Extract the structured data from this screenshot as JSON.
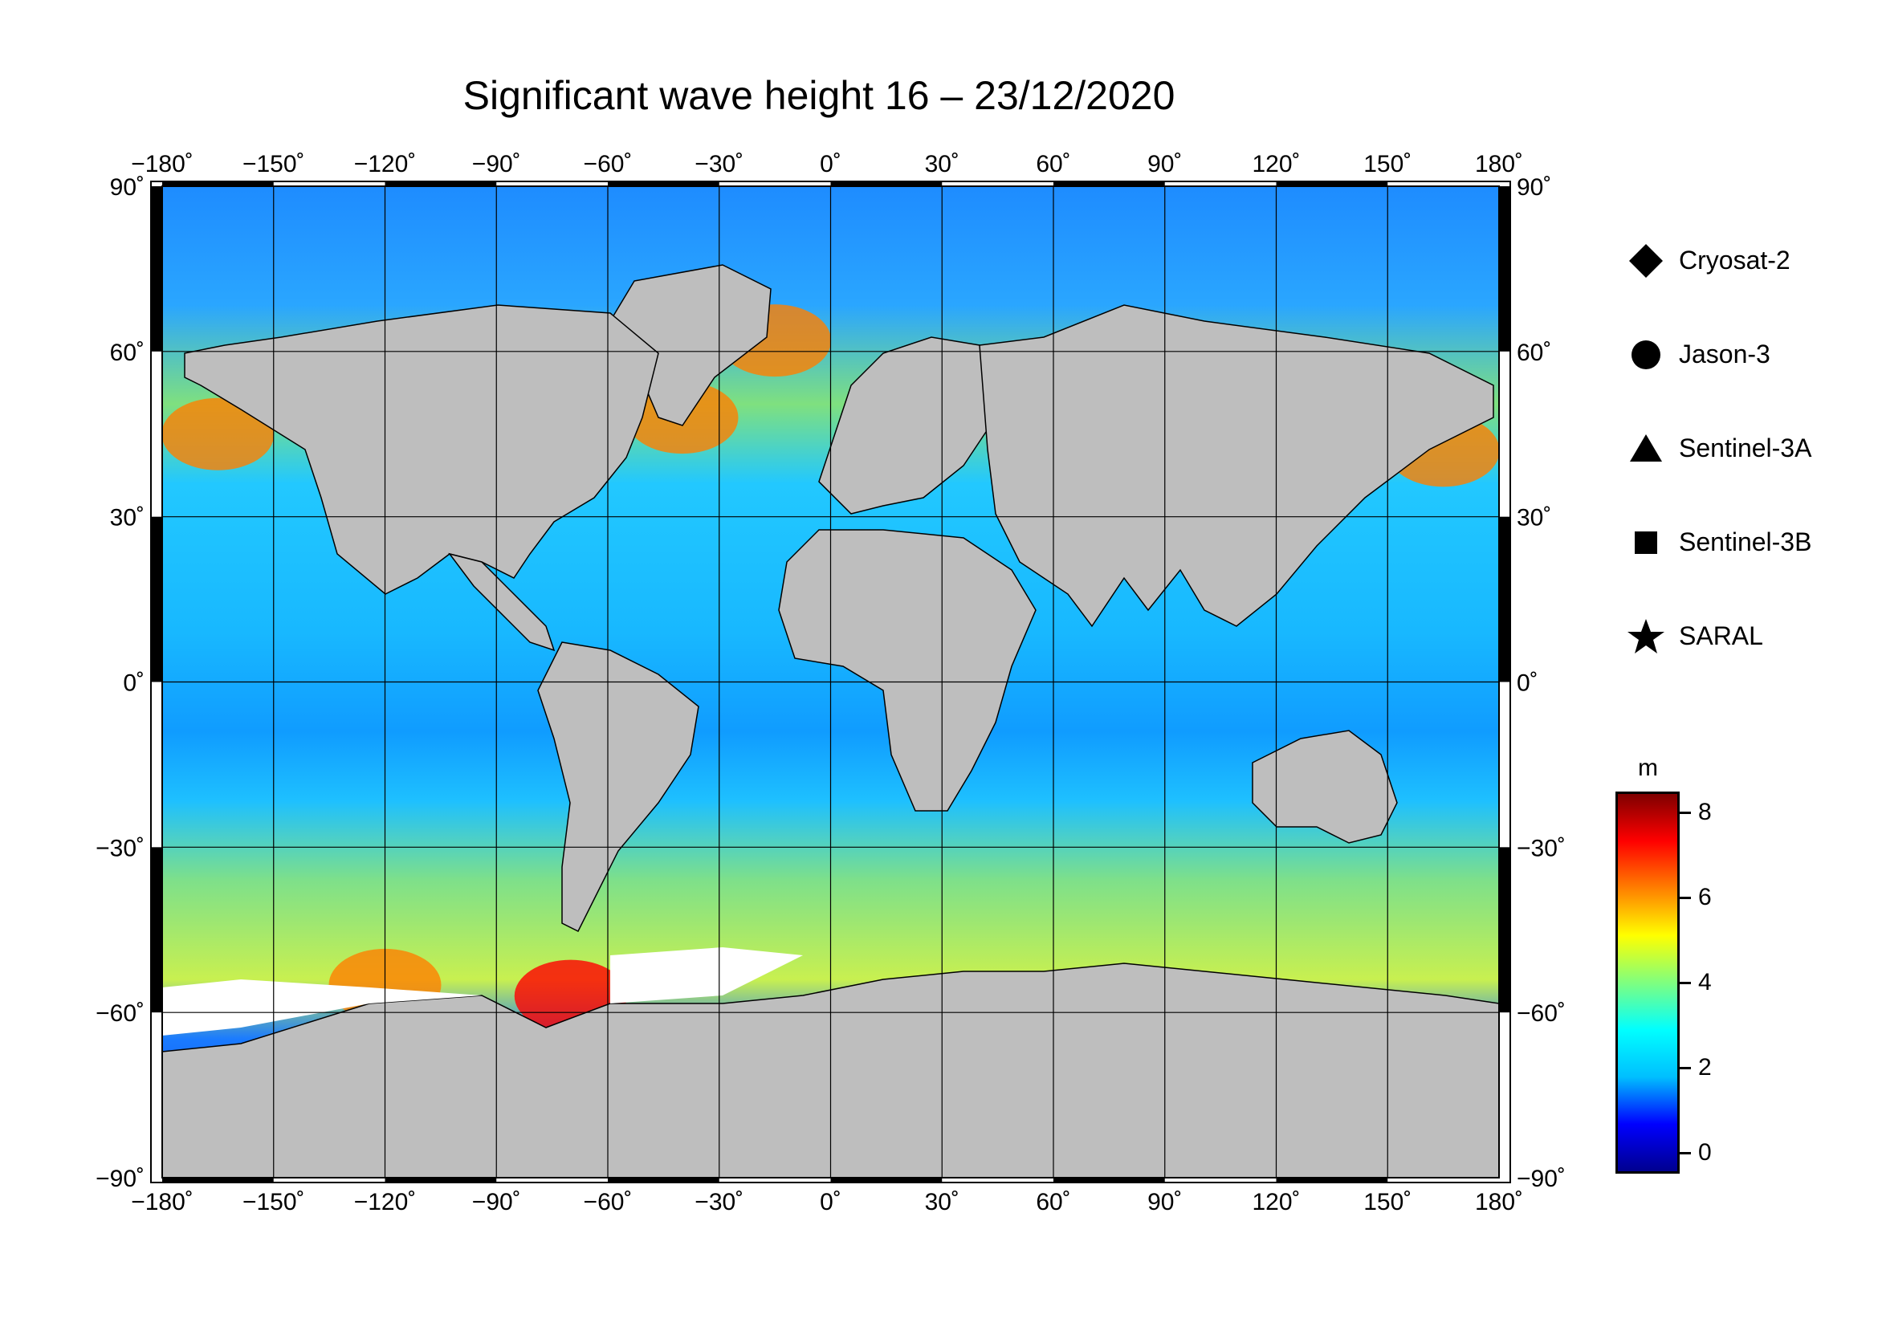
{
  "title": "Significant wave height 16 – 23/12/2020",
  "map": {
    "projection": "equirectangular",
    "lon_range": [
      -180,
      180
    ],
    "lat_range": [
      -90,
      90
    ],
    "graticule_step_deg": 30,
    "lon_ticks": [
      "−180˚",
      "−150˚",
      "−120˚",
      "−90˚",
      "−60˚",
      "−30˚",
      "0˚",
      "30˚",
      "60˚",
      "90˚",
      "120˚",
      "150˚",
      "180˚"
    ],
    "lat_ticks": [
      "90˚",
      "60˚",
      "30˚",
      "0˚",
      "−30˚",
      "−60˚",
      "−90˚"
    ],
    "land_color": "#bebebe",
    "no_data_color": "#ffffff",
    "ocean_field": "significant wave height swaths (altimeter tracks)"
  },
  "legend": {
    "items": [
      {
        "symbol": "diamond",
        "label": "Cryosat-2"
      },
      {
        "symbol": "circle",
        "label": "Jason-3"
      },
      {
        "symbol": "triangle",
        "label": "Sentinel-3A"
      },
      {
        "symbol": "square",
        "label": "Sentinel-3B"
      },
      {
        "symbol": "star",
        "label": "SARAL"
      }
    ]
  },
  "colorbar": {
    "unit": "m",
    "range": [
      -0.5,
      8.5
    ],
    "tick_values": [
      0,
      2,
      4,
      6,
      8
    ],
    "tick_labels": [
      "0",
      "2",
      "4",
      "6",
      "8"
    ],
    "colors": [
      "#00008f",
      "#0000ff",
      "#00bfff",
      "#00ffff",
      "#7fff7f",
      "#ffff00",
      "#ff7f00",
      "#ff0000",
      "#7f0000"
    ]
  },
  "chart_data": {
    "type": "heatmap",
    "title": "Significant wave height 16 – 23/12/2020",
    "xlabel": "",
    "ylabel": "",
    "x_range": [
      -180,
      180
    ],
    "y_range": [
      -90,
      90
    ],
    "value_unit": "m",
    "color_scale_range": [
      -0.5,
      8.5
    ],
    "regions_high_swh": [
      {
        "lon": -165,
        "lat": 45,
        "swh": 6.5
      },
      {
        "lon": -40,
        "lat": 48,
        "swh": 6.5
      },
      {
        "lon": -15,
        "lat": 62,
        "swh": 6.5
      },
      {
        "lon": 165,
        "lat": 42,
        "swh": 6.5
      },
      {
        "lon": -120,
        "lat": -55,
        "swh": 6.5
      },
      {
        "lon": -70,
        "lat": -57,
        "swh": 7.0
      }
    ]
  }
}
